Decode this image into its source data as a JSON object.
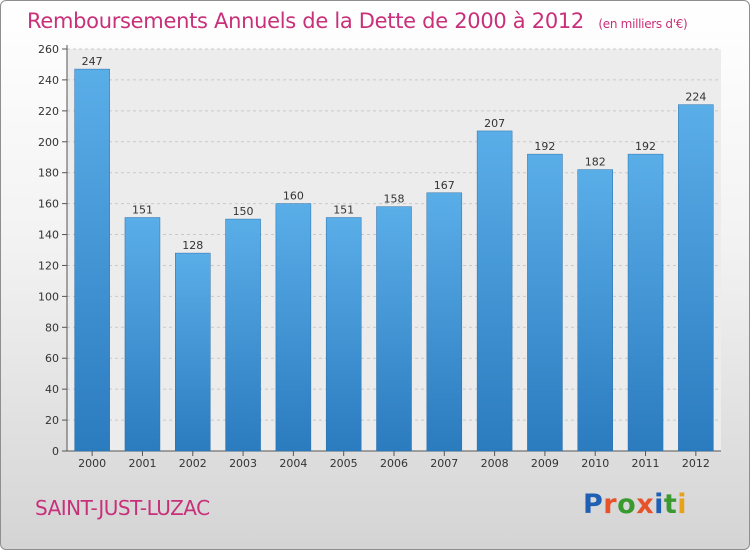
{
  "header": {
    "title": "Remboursements Annuels de la Dette de 2000 à 2012",
    "unit": "(en milliers d'€)"
  },
  "footer": {
    "commune": "SAINT-JUST-LUZAC",
    "brand": "Proxiti"
  },
  "colors": {
    "title": "#c8307a",
    "bar_top": "#5aaee8",
    "bar_bottom": "#2b7bbf",
    "logo_letters": [
      "#1f5fb4",
      "#e8522a",
      "#3a9a2f",
      "#e8522a",
      "#1f5fb4",
      "#3a9a2f",
      "#e8a21a"
    ]
  },
  "chart_data": {
    "type": "bar",
    "title": "Remboursements Annuels de la Dette de 2000 à 2012",
    "categories": [
      "2000",
      "2001",
      "2002",
      "2003",
      "2004",
      "2005",
      "2006",
      "2007",
      "2008",
      "2009",
      "2010",
      "2011",
      "2012"
    ],
    "values": [
      247,
      151,
      128,
      150,
      160,
      151,
      158,
      167,
      207,
      192,
      182,
      192,
      224
    ],
    "ylim": [
      0,
      260
    ],
    "yticks": [
      0,
      20,
      40,
      60,
      80,
      100,
      120,
      140,
      160,
      180,
      200,
      220,
      240,
      260
    ],
    "grid": true,
    "data_labels": true
  }
}
